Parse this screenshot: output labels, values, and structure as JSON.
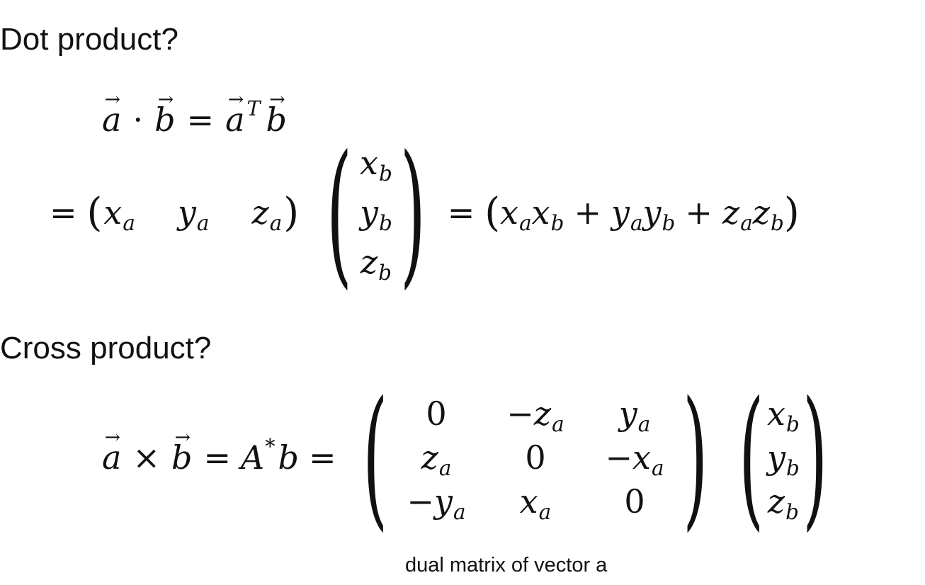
{
  "headings": {
    "dot": "Dot product?",
    "cross": "Cross product?"
  },
  "caption": "dual matrix of vector a",
  "symbols": {
    "a": "a",
    "b": "b",
    "T": "T",
    "A": "A",
    "star": "*",
    "x": "x",
    "y": "y",
    "z": "z",
    "zero": "0",
    "dot": "·",
    "times": "×",
    "eq": "=",
    "plus": "+",
    "minus": "−",
    "lp": "(",
    "rp": ")"
  }
}
